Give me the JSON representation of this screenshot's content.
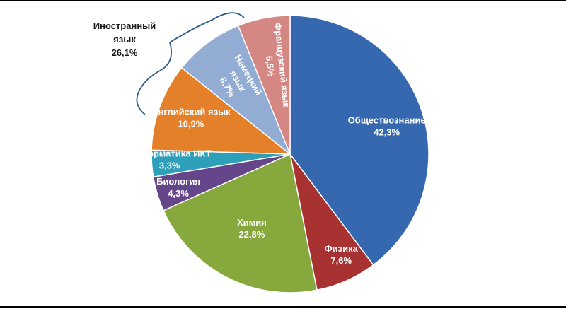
{
  "chart_data": {
    "type": "pie",
    "title": "",
    "slices": [
      {
        "label_lines": [
          "Обществознание",
          "42,3%"
        ],
        "value": 42.3,
        "color": "#3568ae"
      },
      {
        "label_lines": [
          "Физика",
          "7,6%"
        ],
        "value": 7.6,
        "color": "#a83131"
      },
      {
        "label_lines": [
          "Химия",
          "22,8%"
        ],
        "value": 22.8,
        "color": "#86a83c"
      },
      {
        "label_lines": [
          "Биология",
          "4,3%"
        ],
        "value": 4.3,
        "color": "#66468b"
      },
      {
        "label_lines": [
          "Информатика ИКТ",
          "3,3%"
        ],
        "value": 3.3,
        "color": "#2e9fb8"
      },
      {
        "label_lines": [
          "Английский язык",
          "10,9%"
        ],
        "value": 10.9,
        "color": "#e5802a"
      },
      {
        "label_lines": [
          "Немецкий",
          "язык",
          "8,7%"
        ],
        "value": 8.7,
        "color": "#93acd4"
      },
      {
        "label_lines": [
          "Французский язык",
          "6,5%"
        ],
        "value": 6.5,
        "color": "#d58783"
      }
    ],
    "group_annotation": {
      "lines": [
        "Иностранный",
        "язык",
        "26,1%"
      ],
      "members": [
        "Английский язык",
        "Немецкий",
        "Французский язык"
      ]
    },
    "legend": "none"
  }
}
